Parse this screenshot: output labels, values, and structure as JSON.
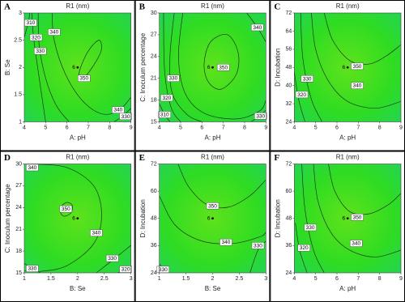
{
  "chart_data": [
    {
      "type": "contour",
      "panel": "A",
      "title": "R1 (nm)",
      "xlabel": "A: pH",
      "ylabel": "B: Se",
      "xlim": [
        4,
        9
      ],
      "xticks": [
        4,
        5,
        6,
        7,
        8,
        9
      ],
      "ylim": [
        1,
        3
      ],
      "yticks": [
        1,
        1.5,
        2,
        2.5,
        3
      ],
      "design_point": {
        "label": "6",
        "x": 6.5,
        "y": 2
      },
      "contours": [
        {
          "level": 350,
          "closed": true,
          "x": [
            6.6,
            7.1,
            7.6,
            7.5,
            7.0,
            6.6
          ],
          "y": [
            1.75,
            1.95,
            2.3,
            2.5,
            2.3,
            1.95
          ],
          "labels": [
            [
              6.8,
              1.8
            ]
          ]
        },
        {
          "level": 340,
          "x": [
            5.3,
            5.4,
            5.9,
            6.7,
            7.6,
            8.4,
            9.0
          ],
          "y": [
            3.0,
            2.5,
            1.9,
            1.4,
            1.15,
            1.2,
            1.45
          ],
          "labels": [
            [
              5.4,
              2.65
            ],
            [
              8.4,
              1.22
            ]
          ]
        },
        {
          "level": 330,
          "x": [
            4.65,
            4.7,
            5.0,
            5.5,
            6.1
          ],
          "y": [
            3.0,
            2.4,
            1.8,
            1.3,
            1.0
          ],
          "labels": [
            [
              4.75,
              2.3
            ]
          ]
        },
        {
          "level": 330,
          "x": [
            8.2,
            8.6,
            9.0
          ],
          "y": [
            1.0,
            1.1,
            1.25
          ],
          "labels": [
            [
              8.75,
              1.1
            ]
          ]
        },
        {
          "level": 320,
          "x": [
            4.35,
            4.45,
            4.7,
            5.0
          ],
          "y": [
            3.0,
            2.5,
            1.8,
            1.0
          ],
          "labels": [
            [
              4.55,
              2.55
            ]
          ]
        },
        {
          "level": 310,
          "x": [
            4.0,
            4.2,
            4.25
          ],
          "y": [
            2.55,
            2.85,
            3.0
          ],
          "labels": [
            [
              4.3,
              2.82
            ]
          ]
        }
      ]
    },
    {
      "type": "contour",
      "panel": "B",
      "title": "R1 (nm)",
      "xlabel": "A: pH",
      "ylabel": "C: Inoculum percentage",
      "xlim": [
        4,
        9
      ],
      "xticks": [
        4,
        5,
        6,
        7,
        8,
        9
      ],
      "ylim": [
        15,
        30
      ],
      "yticks": [
        15,
        18,
        21,
        24,
        27,
        30
      ],
      "design_point": {
        "label": "6",
        "x": 6.5,
        "y": 22.5
      },
      "contours": [
        {
          "level": 350,
          "closed": true,
          "x": [
            6.9,
            7.6,
            7.7,
            7.2,
            6.4,
            6.1,
            6.3
          ],
          "y": [
            19.5,
            21.5,
            24.5,
            27,
            26,
            23,
            20.5
          ],
          "labels": [
            [
              7.0,
              22.5
            ]
          ]
        },
        {
          "level": 340,
          "x": [
            5.1,
            4.9,
            5.2,
            6.1,
            7.6,
            8.7,
            9.0
          ],
          "y": [
            30,
            24,
            19,
            16.2,
            15.4,
            16.5,
            18
          ],
          "labels": []
        },
        {
          "level": 340,
          "x": [
            8.1,
            8.6,
            9.0
          ],
          "y": [
            30,
            28,
            26
          ],
          "labels": [
            [
              8.6,
              28
            ]
          ]
        },
        {
          "level": 330,
          "x": [
            4.7,
            4.5,
            4.6,
            5.3,
            6.0
          ],
          "y": [
            30,
            24,
            19,
            16,
            15
          ],
          "labels": [
            [
              4.65,
              21
            ]
          ]
        },
        {
          "level": 330,
          "x": [
            8.3,
            8.7,
            9.0
          ],
          "y": [
            15,
            15.8,
            16.6
          ],
          "labels": [
            [
              8.75,
              15.8
            ]
          ]
        },
        {
          "level": 320,
          "x": [
            4.2,
            4.25,
            4.55,
            5.0
          ],
          "y": [
            30,
            22,
            17,
            15
          ],
          "labels": [
            [
              4.35,
              18.3
            ]
          ]
        },
        {
          "level": 310,
          "x": [
            4.0,
            4.25,
            4.5
          ],
          "y": [
            17.5,
            16,
            15
          ],
          "labels": [
            [
              4.25,
              16
            ]
          ]
        }
      ]
    },
    {
      "type": "contour",
      "panel": "C",
      "title": "R1 (nm)",
      "xlabel": "A: pH",
      "ylabel": "D: Incubation",
      "xlim": [
        4,
        9
      ],
      "xticks": [
        4,
        5,
        6,
        7,
        8,
        9
      ],
      "ylim": [
        24,
        72
      ],
      "yticks": [
        24,
        32,
        40,
        48,
        56,
        64,
        72
      ],
      "design_point": {
        "label": "6",
        "x": 6.5,
        "y": 48
      },
      "contours": [
        {
          "level": 350,
          "x": [
            5.4,
            5.8,
            6.6,
            7.5,
            8.3,
            9.0
          ],
          "y": [
            72,
            60,
            51,
            49.5,
            53,
            58
          ],
          "labels": [
            [
              6.95,
              48.5
            ]
          ]
        },
        {
          "level": 340,
          "x": [
            4.8,
            5.0,
            5.6,
            6.5,
            7.8,
            9.0
          ],
          "y": [
            72,
            56,
            42,
            33,
            30,
            33
          ],
          "labels": [
            [
              6.95,
              40
            ]
          ]
        },
        {
          "level": 330,
          "x": [
            4.3,
            4.4,
            4.8,
            5.3
          ],
          "y": [
            72,
            52,
            34,
            24
          ],
          "labels": [
            [
              4.6,
              43
            ]
          ]
        },
        {
          "level": 320,
          "x": [
            4.0,
            4.2,
            4.5
          ],
          "y": [
            46,
            34,
            24
          ],
          "labels": [
            [
              4.35,
              36
            ]
          ]
        }
      ]
    },
    {
      "type": "contour",
      "panel": "D",
      "title": "R1 (nm)",
      "xlabel": "B: Se",
      "ylabel": "C: Inoculum percentage",
      "xlim": [
        1,
        3
      ],
      "xticks": [
        1,
        1.5,
        2,
        2.5,
        3
      ],
      "ylim": [
        15,
        30
      ],
      "yticks": [
        15,
        18,
        21,
        24,
        27,
        30
      ],
      "design_point": {
        "label": "6",
        "x": 2,
        "y": 22.5
      },
      "contours": [
        {
          "level": 350,
          "closed": true,
          "x": [
            1.75,
            1.88,
            1.9,
            1.8,
            1.7,
            1.68
          ],
          "y": [
            22.8,
            23.3,
            24.3,
            24.7,
            24.2,
            23.3
          ],
          "labels": [
            [
              1.78,
              23.8
            ]
          ]
        },
        {
          "level": 340,
          "x": [
            1.15,
            1.8,
            2.3,
            2.45,
            2.3,
            1.8,
            1.3,
            1.0
          ],
          "y": [
            30,
            29.5,
            27,
            23,
            19,
            16,
            15.2,
            15.3
          ],
          "labels": [
            [
              1.15,
              29.5
            ],
            [
              2.35,
              20.5
            ]
          ]
        },
        {
          "level": 330,
          "x": [
            2.35,
            2.7,
            3.0
          ],
          "y": [
            15,
            17,
            18.8
          ],
          "labels": [
            [
              2.65,
              17
            ]
          ]
        },
        {
          "level": 330,
          "x": [
            1.0,
            1.15,
            1.3
          ],
          "y": [
            16.3,
            15.6,
            15
          ],
          "labels": [
            [
              1.15,
              15.6
            ]
          ]
        },
        {
          "level": 320,
          "x": [
            2.75,
            2.9,
            3.0
          ],
          "y": [
            15,
            15.5,
            16
          ],
          "labels": [
            [
              2.9,
              15.5
            ]
          ]
        }
      ]
    },
    {
      "type": "contour",
      "panel": "E",
      "title": "R1 (nm)",
      "xlabel": "B: Se",
      "ylabel": "D: Incubation",
      "xlim": [
        1,
        3
      ],
      "xticks": [
        1,
        1.5,
        2,
        2.5,
        3
      ],
      "ylim": [
        24,
        72
      ],
      "yticks": [
        24,
        36,
        48,
        60,
        72
      ],
      "design_point": {
        "label": "6",
        "x": 2,
        "y": 48
      },
      "contours": [
        {
          "level": 350,
          "x": [
            1.35,
            1.55,
            1.9,
            2.3,
            2.7,
            3.0
          ],
          "y": [
            72,
            62,
            54,
            53,
            58,
            65
          ],
          "labels": [
            [
              2.0,
              53.5
            ]
          ]
        },
        {
          "level": 340,
          "x": [
            1.0,
            1.3,
            1.8,
            2.4,
            2.9,
            3.0
          ],
          "y": [
            58,
            45,
            38,
            37,
            40,
            42
          ],
          "labels": [
            [
              2.25,
              37.5
            ]
          ]
        },
        {
          "level": 330,
          "x": [
            2.7,
            2.85,
            3.0
          ],
          "y": [
            24,
            34,
            38
          ],
          "labels": [
            [
              2.85,
              36
            ]
          ]
        },
        {
          "level": 330,
          "x": [
            1.0,
            1.08,
            1.15
          ],
          "y": [
            28,
            25.5,
            24
          ],
          "labels": [
            [
              1.07,
              25.5
            ]
          ]
        }
      ]
    },
    {
      "type": "contour",
      "panel": "F",
      "title": "R1 (nm)",
      "xlabel": "A: pH",
      "ylabel": "D: Incubation",
      "xlim": [
        4,
        9
      ],
      "xticks": [
        4,
        5,
        6,
        7,
        8,
        9
      ],
      "ylim": [
        24,
        72
      ],
      "yticks": [
        24,
        36,
        48,
        60,
        72
      ],
      "design_point": {
        "label": "6",
        "x": 6.5,
        "y": 48
      },
      "contours": [
        {
          "level": 350,
          "x": [
            5.6,
            5.9,
            6.6,
            7.5,
            8.4,
            9.0
          ],
          "y": [
            72,
            60,
            51,
            50,
            54,
            59
          ],
          "labels": [
            [
              6.95,
              48.5
            ]
          ]
        },
        {
          "level": 340,
          "x": [
            4.9,
            5.1,
            5.7,
            6.6,
            7.8,
            9.0
          ],
          "y": [
            72,
            56,
            42,
            34,
            31,
            34
          ],
          "labels": [
            [
              6.9,
              37
            ]
          ]
        },
        {
          "level": 330,
          "x": [
            4.35,
            4.5,
            4.9,
            5.4
          ],
          "y": [
            72,
            52,
            34,
            24
          ],
          "labels": [
            [
              4.75,
              44
            ]
          ]
        },
        {
          "level": 320,
          "x": [
            4.05,
            4.25,
            4.6
          ],
          "y": [
            46,
            34,
            24
          ],
          "labels": [
            [
              4.45,
              35
            ]
          ]
        }
      ]
    }
  ]
}
